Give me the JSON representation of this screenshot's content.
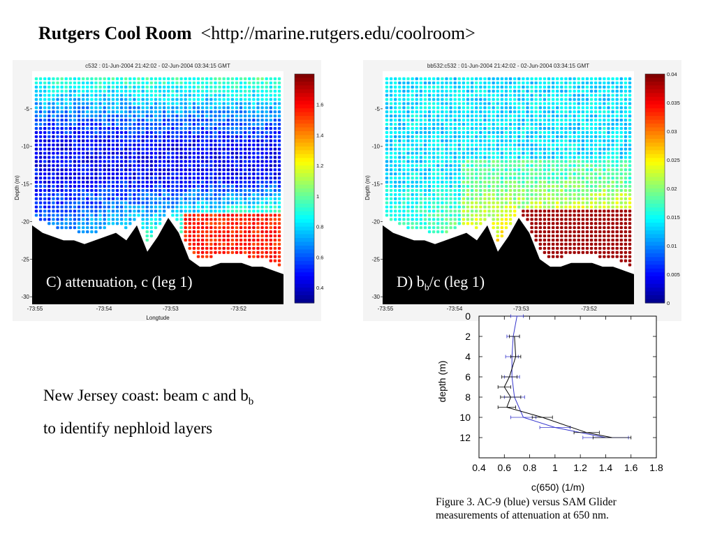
{
  "header": {
    "title_bold": "Rutgers Cool Room",
    "title_link": "<http://marine.rutgers.edu/coolroom>"
  },
  "body_text": {
    "line1_pre": "New Jersey coast:  beam c and b",
    "line1_sub": "b",
    "line2": "to identify nephloid layers"
  },
  "caption": {
    "line1": "Figure 3. AC-9 (blue) versus SAM Glider",
    "line2": "measurements of attenuation at 650 nm."
  },
  "colors": {
    "blue_series": "#3333cc",
    "black_series": "#000000",
    "seafloor": "#000000"
  },
  "chart_data": [
    {
      "type": "heatmap",
      "title": "c532 : 01-Jun-2004 21:42:02 - 02-Jun-2004 03:34:15 GMT",
      "panel_label": "C) attenuation, c (leg 1)",
      "xlabel": "Longtude",
      "ylabel": "Depth (m)",
      "x_ticks": [
        "-73:55",
        "-73:54",
        "-73:53",
        "-73:52"
      ],
      "y_ticks": [
        "-5",
        "-10",
        "-15",
        "-20",
        "-25",
        "-30"
      ],
      "ylim": [
        -31,
        0
      ],
      "colorbar_ticks": [
        "1.6",
        "1.4",
        "1.2",
        "1",
        "0.8",
        "0.6",
        "0.4"
      ],
      "colorbar_range": [
        0.3,
        1.8
      ],
      "seafloor_depth_m": [
        -20.5,
        -21.5,
        -22,
        -22.5,
        -22.5,
        -23,
        -22.5,
        -22,
        -21.5,
        -22.5,
        -20.5,
        -24,
        -22,
        -19.5,
        -21.5,
        -25,
        -26,
        -26,
        -25.5,
        -25.5,
        -25.5,
        -26,
        -26,
        -26.5,
        -27
      ]
    },
    {
      "type": "heatmap",
      "title": "bb532:c532 : 01-Jun-2004 21:42:02 - 02-Jun-2004 03:34:15 GMT",
      "panel_label_pre": "D) b",
      "panel_label_sub": "b",
      "panel_label_post": "/c (leg 1)",
      "xlabel": "",
      "ylabel": "Depth (m)",
      "x_ticks": [
        "-73:55",
        "-73:54",
        "-73:53",
        "-73:52"
      ],
      "y_ticks": [
        "-5",
        "-10",
        "-15",
        "-20",
        "-25",
        "-30"
      ],
      "ylim": [
        -31,
        0
      ],
      "colorbar_ticks": [
        "0.04",
        "0.035",
        "0.03",
        "0.025",
        "0.02",
        "0.015",
        "0.01",
        "0.005",
        "0"
      ],
      "colorbar_range": [
        0,
        0.04
      ],
      "seafloor_depth_m": [
        -20.5,
        -21.5,
        -22,
        -22.5,
        -22.5,
        -23,
        -22.5,
        -22,
        -21.5,
        -22.5,
        -20.5,
        -24,
        -22,
        -19.5,
        -21.5,
        -25,
        -26,
        -26,
        -25.5,
        -25.5,
        -25.5,
        -26,
        -26,
        -26.5,
        -27
      ]
    },
    {
      "type": "line",
      "title": "",
      "xlabel": "c(650) (1/m)",
      "ylabel": "depth (m)",
      "xlim": [
        0.4,
        1.8
      ],
      "ylim": [
        14,
        0
      ],
      "x_ticks": [
        "0.4",
        "0.6",
        "0.8",
        "1",
        "1.2",
        "1.4",
        "1.6",
        "1.8"
      ],
      "y_ticks": [
        "0",
        "2",
        "4",
        "6",
        "8",
        "10",
        "12"
      ],
      "series": [
        {
          "color": "#3333cc",
          "points": [
            [
              0.7,
              0
            ],
            [
              0.67,
              2
            ],
            [
              0.66,
              4
            ],
            [
              0.66,
              6
            ],
            [
              0.68,
              8
            ],
            [
              0.75,
              10
            ],
            [
              1.0,
              11
            ],
            [
              1.4,
              12
            ]
          ],
          "err": [
            0.05,
            0.05,
            0.05,
            0.06,
            0.08,
            0.1,
            0.12,
            0.18
          ]
        },
        {
          "color": "#000000",
          "points": [
            [
              0.68,
              2
            ],
            [
              0.69,
              4
            ],
            [
              0.64,
              6
            ],
            [
              0.6,
              7
            ],
            [
              0.65,
              8
            ],
            [
              0.62,
              9
            ],
            [
              0.9,
              10
            ],
            [
              1.25,
              11.5
            ],
            [
              1.45,
              12
            ]
          ],
          "err": [
            0.04,
            0.04,
            0.06,
            0.05,
            0.08,
            0.07,
            0.08,
            0.1,
            0.15
          ]
        }
      ]
    }
  ]
}
